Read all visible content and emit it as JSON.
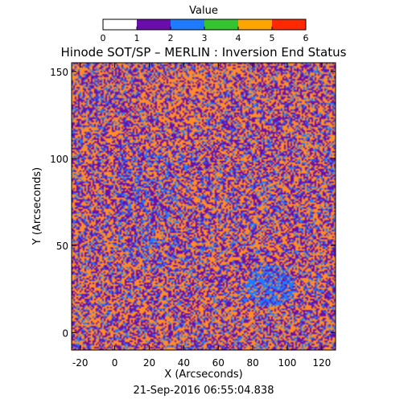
{
  "colorbar": {
    "title": "Value",
    "ticks": [
      "0",
      "1",
      "2",
      "3",
      "4",
      "5",
      "6"
    ],
    "colors": [
      "#ffffff",
      "#6a0dad",
      "#1e7bff",
      "#34c430",
      "#ffa500",
      "#ff2800"
    ]
  },
  "chart_data": {
    "type": "heatmap",
    "title": "Hinode SOT/SP – MERLIN : Inversion End Status",
    "xlabel": "X (Arcseconds)",
    "ylabel": "Y (Arcseconds)",
    "xlim": [
      -25,
      128
    ],
    "ylim": [
      -10,
      155
    ],
    "x_ticks": [
      "-20",
      "0",
      "20",
      "40",
      "60",
      "80",
      "100",
      "120"
    ],
    "x_tick_values": [
      -20,
      0,
      20,
      40,
      60,
      80,
      100,
      120
    ],
    "y_ticks": [
      "0",
      "50",
      "100",
      "150"
    ],
    "y_tick_values": [
      0,
      50,
      100,
      150
    ],
    "value_range": [
      0,
      6
    ],
    "dominant_values": [
      1,
      2,
      4
    ],
    "values_description": "Speckled per-pixel status map dominated by purple (1), blue (2) and orange (4); a larger blue region near X 80-100, Y 15-40.",
    "footer": "21-Sep-2016 06:55:04.838"
  }
}
